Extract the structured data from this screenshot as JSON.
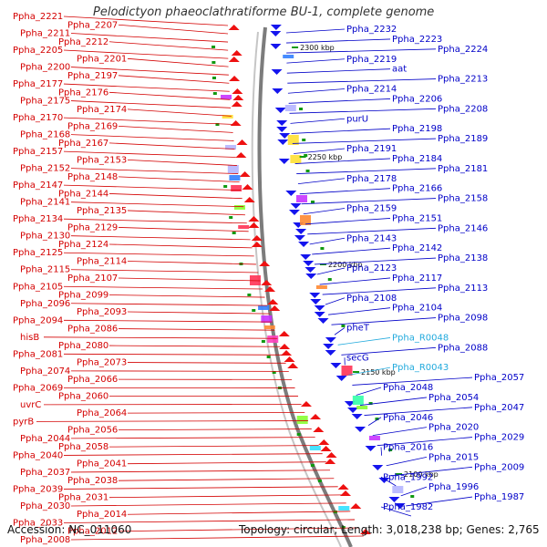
{
  "title": "Pelodictyon phaeoclathratiforme BU-1, complete genome",
  "footer": {
    "accession": "Accession: NC_011060",
    "summary": "Topology: circular; Length: 3,018,238 bp; Genes: 2,765"
  },
  "colors": {
    "left_label": "#d40000",
    "right_label": "#0000c8",
    "rna_label": "#22aadd",
    "marker": "#111111"
  },
  "markers": [
    "2300 kbp",
    "2250 kbp",
    "2200 kbp",
    "2150 kbp",
    "2100 kbp"
  ],
  "left_labels": [
    "Ppha_2221",
    "Ppha_2207",
    "Ppha_2211",
    "Ppha_2212",
    "Ppha_2205",
    "Ppha_2201",
    "Ppha_2200",
    "Ppha_2197",
    "Ppha_2177",
    "Ppha_2176",
    "Ppha_2175",
    "Ppha_2174",
    "Ppha_2170",
    "Ppha_2169",
    "Ppha_2168",
    "Ppha_2167",
    "Ppha_2157",
    "Ppha_2153",
    "Ppha_2152",
    "Ppha_2148",
    "Ppha_2147",
    "Ppha_2144",
    "Ppha_2141",
    "Ppha_2135",
    "Ppha_2134",
    "Ppha_2129",
    "Ppha_2130",
    "Ppha_2124",
    "Ppha_2125",
    "Ppha_2114",
    "Ppha_2115",
    "Ppha_2107",
    "Ppha_2105",
    "Ppha_2099",
    "Ppha_2096",
    "Ppha_2093",
    "Ppha_2094",
    "Ppha_2086",
    "hisB",
    "Ppha_2080",
    "Ppha_2081",
    "Ppha_2073",
    "Ppha_2074",
    "Ppha_2066",
    "Ppha_2069",
    "Ppha_2060",
    "uvrC",
    "Ppha_2064",
    "pyrB",
    "Ppha_2056",
    "Ppha_2044",
    "Ppha_2058",
    "Ppha_2040",
    "Ppha_2041",
    "Ppha_2037",
    "Ppha_2038",
    "Ppha_2039",
    "Ppha_2031",
    "Ppha_2030",
    "Ppha_2014",
    "Ppha_2033",
    "Ppha_2012",
    "Ppha_2008"
  ],
  "right_labels": [
    "Ppha_2232",
    "Ppha_2223",
    "Ppha_2224",
    "Ppha_2219",
    "aat",
    "Ppha_2213",
    "Ppha_2214",
    "Ppha_2206",
    "Ppha_2208",
    "purU",
    "Ppha_2198",
    "Ppha_2189",
    "Ppha_2191",
    "Ppha_2184",
    "Ppha_2181",
    "Ppha_2178",
    "Ppha_2166",
    "Ppha_2158",
    "Ppha_2159",
    "Ppha_2151",
    "Ppha_2146",
    "Ppha_2143",
    "Ppha_2142",
    "Ppha_2138",
    "Ppha_2123",
    "Ppha_2117",
    "Ppha_2113",
    "Ppha_2108",
    "Ppha_2104",
    "Ppha_2098",
    "phe​T",
    "Ppha_R0048",
    "Ppha_2088",
    "secG",
    "Ppha_R0043",
    "Ppha_2057",
    "Ppha_2048",
    "Ppha_2054",
    "Ppha_2047",
    "Ppha_2046",
    "Ppha_2020",
    "Ppha_2029",
    "Ppha_2016",
    "Ppha_2015",
    "Ppha_2009",
    "Ppha_1992",
    "Ppha_1996",
    "Ppha_1987",
    "Ppha_1982"
  ]
}
